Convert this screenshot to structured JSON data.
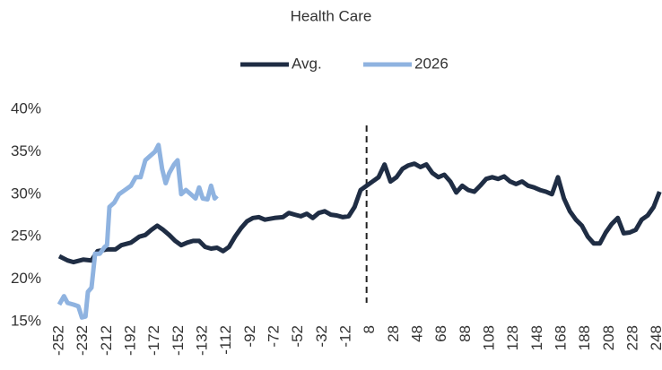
{
  "chart_data": {
    "type": "line",
    "title": "Health Care",
    "xlim": [
      -255,
      252
    ],
    "xticks": [
      -252,
      -232,
      -212,
      -192,
      -172,
      -152,
      -132,
      -112,
      -92,
      -72,
      -52,
      -32,
      -12,
      8,
      28,
      48,
      68,
      88,
      108,
      128,
      148,
      168,
      188,
      208,
      228,
      248
    ],
    "ylim": [
      15,
      40
    ],
    "yticks": [
      {
        "value": 15,
        "label": "15%"
      },
      {
        "value": 20,
        "label": "20%"
      },
      {
        "value": 25,
        "label": "25%"
      },
      {
        "value": 30,
        "label": "30%"
      },
      {
        "value": 35,
        "label": "35%"
      },
      {
        "value": 40,
        "label": "40%"
      }
    ],
    "vline": 5,
    "grid": false,
    "legend": "top",
    "series": [
      {
        "name": "Avg.",
        "color": "#1f2d44",
        "x": [
          -252,
          -245,
          -240,
          -232,
          -225,
          -220,
          -212,
          -205,
          -200,
          -192,
          -185,
          -180,
          -175,
          -170,
          -165,
          -160,
          -155,
          -150,
          -145,
          -140,
          -135,
          -130,
          -125,
          -120,
          -115,
          -110,
          -105,
          -100,
          -95,
          -90,
          -85,
          -80,
          -72,
          -65,
          -60,
          -55,
          -50,
          -45,
          -40,
          -35,
          -30,
          -25,
          -20,
          -15,
          -10,
          -5,
          0,
          5,
          10,
          15,
          20,
          25,
          30,
          35,
          40,
          45,
          50,
          55,
          60,
          65,
          70,
          75,
          80,
          85,
          90,
          95,
          100,
          105,
          110,
          115,
          120,
          125,
          130,
          135,
          140,
          145,
          150,
          155,
          160,
          165,
          170,
          175,
          180,
          185,
          190,
          195,
          200,
          205,
          210,
          215,
          220,
          225,
          230,
          235,
          240,
          245,
          250
        ],
        "values": [
          22.7,
          22.2,
          22.0,
          22.3,
          22.2,
          23.3,
          23.5,
          23.5,
          24.0,
          24.3,
          25.0,
          25.2,
          25.8,
          26.3,
          25.8,
          25.2,
          24.5,
          24.0,
          24.3,
          24.5,
          24.5,
          23.8,
          23.6,
          23.7,
          23.3,
          23.8,
          25.0,
          26.0,
          26.8,
          27.2,
          27.3,
          27.0,
          27.2,
          27.3,
          27.8,
          27.6,
          27.4,
          27.7,
          27.2,
          27.8,
          28.0,
          27.6,
          27.5,
          27.3,
          27.4,
          28.5,
          30.5,
          31.0,
          31.5,
          32.0,
          33.5,
          31.5,
          32.0,
          33.0,
          33.4,
          33.6,
          33.2,
          33.5,
          32.5,
          32.0,
          32.3,
          31.5,
          30.2,
          31.0,
          30.5,
          30.3,
          31.0,
          31.8,
          32.0,
          31.8,
          32.1,
          31.5,
          31.2,
          31.5,
          31.0,
          30.8,
          30.5,
          30.3,
          30.0,
          32.0,
          29.5,
          28.0,
          27.0,
          26.3,
          25.0,
          24.2,
          24.2,
          25.5,
          26.5,
          27.2,
          25.4,
          25.5,
          25.8,
          27.0,
          27.5,
          28.5,
          30.3
        ]
      },
      {
        "name": "2026",
        "color": "#8fb3e0",
        "x": [
          -252,
          -248,
          -245,
          -240,
          -236,
          -233,
          -230,
          -228,
          -225,
          -222,
          -218,
          -214,
          -212,
          -210,
          -206,
          -202,
          -197,
          -192,
          -188,
          -184,
          -180,
          -176,
          -172,
          -169,
          -166,
          -163,
          -160,
          -156,
          -153,
          -150,
          -146,
          -142,
          -138,
          -135,
          -132,
          -128,
          -125,
          -122,
          -120
        ],
        "values": [
          17.0,
          18.0,
          17.2,
          17.0,
          16.8,
          15.5,
          15.6,
          18.5,
          19.0,
          23.0,
          23.0,
          23.8,
          24.0,
          28.5,
          29.0,
          30.0,
          30.5,
          31.0,
          32.0,
          32.0,
          34.0,
          34.5,
          35.0,
          35.8,
          33.0,
          31.3,
          32.5,
          33.5,
          34.0,
          30.0,
          30.5,
          30.0,
          29.5,
          30.8,
          29.5,
          29.4,
          31.0,
          29.5,
          29.8
        ]
      }
    ]
  }
}
